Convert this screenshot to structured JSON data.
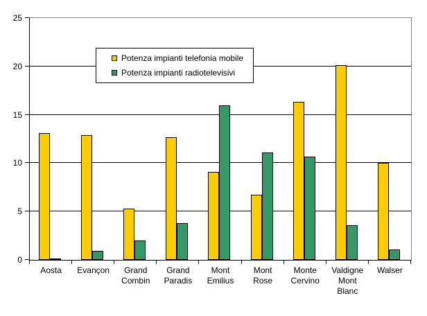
{
  "chart_data": {
    "type": "bar",
    "title": "",
    "xlabel": "",
    "ylabel": "",
    "ylim": [
      0,
      25
    ],
    "yticks": [
      0,
      5,
      10,
      15,
      20,
      25
    ],
    "grid": true,
    "legend_position": "inside-top-left",
    "categories": [
      "Aosta",
      "Evançon",
      "Grand\nCombin",
      "Grand\nParadis",
      "Mont\nEmilius",
      "Mont\nRose",
      "Monte\nCervino",
      "Valdigne\nMont\nBlanc",
      "Walser"
    ],
    "series": [
      {
        "name": "Potenza impianti telefonia mobile",
        "color": "#FFCC00",
        "values": [
          13.1,
          12.9,
          5.3,
          12.7,
          9.1,
          6.7,
          16.3,
          20.1,
          10.0
        ]
      },
      {
        "name": "Potenza impianti radiotelevisivi",
        "color": "#339966",
        "values": [
          0.1,
          0.9,
          2.0,
          3.8,
          16.0,
          11.1,
          10.7,
          3.6,
          1.1
        ]
      }
    ]
  },
  "colors": {
    "axis": "#000000",
    "gridline": "#000000",
    "plot_border": "#848484",
    "background": "#FFFFFF",
    "text": "#000000"
  }
}
